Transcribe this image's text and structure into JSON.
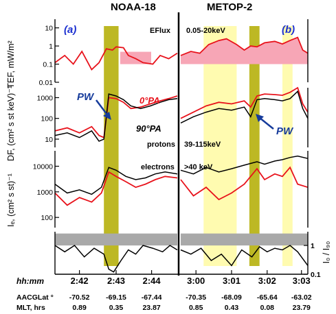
{
  "header": {
    "left_title": "NOAA-18",
    "right_title": "METOP-2"
  },
  "panel_labels": {
    "left": "(a)",
    "right": "(b)"
  },
  "annotations": {
    "eflux": "EFlux",
    "energy_range": "0.05-20keV",
    "pw": "PW",
    "pa0": "0°PA",
    "pa90": "90°PA",
    "protons": "protons",
    "proton_energy": "39-115keV",
    "electrons": "electrons",
    "electron_energy": ">40 keV"
  },
  "axis_labels": {
    "tef": "TEF, mW/m²",
    "df": "DF, (cm² s st keV)⁻¹",
    "ie": "Iₑ, (cm² s st)⁻¹",
    "ratio": "I₀ / I₉₀"
  },
  "row_labels": {
    "time": "hh:mm",
    "lat": "AACGLat °",
    "mlt": "MLT, hrs"
  },
  "colors": {
    "red": "#e8121b",
    "black": "#000000",
    "pw_band": "#bdb824",
    "pale_band": "#fffbb0",
    "pink_fill": "#f7a6b6",
    "gray_band": "#a9a9a9",
    "panel_blue": "#1b2fd0"
  },
  "chart_data": {
    "type": "line",
    "layout": "two-column stacked time series (NOAA-18 left, METOP-2 right)",
    "panels": [
      {
        "name": "TEF",
        "scale": "log",
        "ylim": [
          0.01,
          30
        ],
        "y_ticks": [
          "10",
          "1",
          "0.1",
          "0.01"
        ],
        "y_tick_values": [
          10,
          1,
          0.1,
          0.01
        ],
        "left": {
          "series": [
            {
              "name": "EFlux",
              "color": "red",
              "x": [
                0,
                0.08,
                0.15,
                0.22,
                0.3,
                0.36,
                0.42,
                0.47,
                0.5,
                0.56,
                0.6,
                0.66,
                0.72,
                0.8,
                0.86,
                0.93,
                1.0
              ],
              "values": [
                0.12,
                0.3,
                0.1,
                0.5,
                0.05,
                0.12,
                0.7,
                0.6,
                0.9,
                0.8,
                0.3,
                0.2,
                0.12,
                0.1,
                0.3,
                0.2,
                0.4
              ]
            }
          ]
        },
        "right": {
          "series": [
            {
              "name": "EFlux",
              "color": "red",
              "x": [
                0,
                0.08,
                0.15,
                0.22,
                0.3,
                0.36,
                0.44,
                0.5,
                0.55,
                0.6,
                0.66,
                0.74,
                0.8,
                0.86,
                0.92,
                0.96,
                1.0
              ],
              "values": [
                0.3,
                0.5,
                0.4,
                1.2,
                2.0,
                2.5,
                1.2,
                0.6,
                1.0,
                0.9,
                1.5,
                1.8,
                1.3,
                2.0,
                3.0,
                0.6,
                0.4
              ]
            }
          ]
        }
      },
      {
        "name": "DF",
        "scale": "log",
        "ylim": [
          4,
          3000
        ],
        "y_ticks": [
          "1000",
          "100",
          "10"
        ],
        "y_tick_values": [
          1000,
          100,
          10
        ],
        "left": {
          "series": [
            {
              "name": "0°PA",
              "color": "red",
              "x": [
                0,
                0.1,
                0.2,
                0.3,
                0.36,
                0.4,
                0.44,
                0.5,
                0.56,
                0.62,
                0.7,
                0.78,
                0.86,
                0.93,
                1.0
              ],
              "values": [
                25,
                35,
                20,
                40,
                15,
                12,
                1000,
                900,
                600,
                300,
                350,
                500,
                700,
                900,
                1200
              ]
            },
            {
              "name": "90°PA",
              "color": "black",
              "x": [
                0,
                0.1,
                0.2,
                0.3,
                0.36,
                0.4,
                0.44,
                0.5,
                0.56,
                0.62,
                0.7,
                0.78,
                0.86,
                0.93,
                1.0
              ],
              "values": [
                15,
                20,
                12,
                25,
                8,
                10,
                1500,
                1200,
                800,
                400,
                300,
                400,
                600,
                800,
                900
              ]
            }
          ]
        },
        "right": {
          "series": [
            {
              "name": "0°PA",
              "color": "red",
              "x": [
                0,
                0.1,
                0.2,
                0.3,
                0.4,
                0.5,
                0.55,
                0.6,
                0.66,
                0.74,
                0.8,
                0.86,
                0.92,
                0.96,
                1.0
              ],
              "values": [
                100,
                200,
                400,
                600,
                500,
                700,
                350,
                1200,
                1500,
                1400,
                1300,
                1800,
                3000,
                500,
                200
              ]
            },
            {
              "name": "90°PA",
              "color": "black",
              "x": [
                0,
                0.1,
                0.2,
                0.3,
                0.4,
                0.5,
                0.55,
                0.6,
                0.66,
                0.74,
                0.8,
                0.86,
                0.92,
                0.96,
                1.0
              ],
              "values": [
                60,
                120,
                200,
                300,
                250,
                350,
                120,
                800,
                900,
                800,
                700,
                900,
                2000,
                300,
                100
              ]
            }
          ]
        }
      },
      {
        "name": "Ie",
        "scale": "log",
        "ylim": [
          40,
          40000
        ],
        "y_ticks": [
          "10000",
          "1000",
          "100"
        ],
        "y_tick_values": [
          10000,
          1000,
          100
        ],
        "left": {
          "series": [
            {
              "name": "0°PA",
              "color": "red",
              "x": [
                0,
                0.1,
                0.2,
                0.3,
                0.38,
                0.44,
                0.5,
                0.58,
                0.66,
                0.74,
                0.82,
                0.9,
                1.0
              ],
              "values": [
                900,
                300,
                600,
                400,
                900,
                6000,
                4000,
                2500,
                1500,
                2000,
                3000,
                4000,
                3500
              ]
            },
            {
              "name": "90°PA",
              "color": "black",
              "x": [
                0,
                0.1,
                0.2,
                0.3,
                0.38,
                0.44,
                0.5,
                0.58,
                0.66,
                0.74,
                0.82,
                0.9,
                1.0
              ],
              "values": [
                2000,
                900,
                1200,
                800,
                1500,
                9000,
                7000,
                4000,
                3000,
                3500,
                5000,
                6000,
                5000
              ]
            }
          ]
        },
        "right": {
          "series": [
            {
              "name": "0°PA",
              "color": "red",
              "x": [
                0,
                0.1,
                0.2,
                0.3,
                0.4,
                0.5,
                0.6,
                0.66,
                0.74,
                0.8,
                0.86,
                0.92,
                1.0
              ],
              "values": [
                3000,
                700,
                1500,
                500,
                900,
                2000,
                8000,
                3000,
                5000,
                4000,
                9000,
                2000,
                1500
              ]
            },
            {
              "name": "90°PA",
              "color": "black",
              "x": [
                0,
                0.1,
                0.2,
                0.3,
                0.4,
                0.5,
                0.6,
                0.66,
                0.74,
                0.8,
                0.86,
                0.92,
                1.0
              ],
              "values": [
                7000,
                5000,
                9000,
                6000,
                8000,
                11000,
                15000,
                12000,
                16000,
                18000,
                22000,
                25000,
                20000
              ]
            }
          ]
        }
      },
      {
        "name": "I0/I90",
        "scale": "log",
        "ylim": [
          0.1,
          3
        ],
        "y_ticks": [
          "1",
          "0.1"
        ],
        "y_tick_values": [
          1,
          0.1
        ],
        "left": {
          "series": [
            {
              "name": "ratio",
              "color": "black",
              "x": [
                0,
                0.08,
                0.16,
                0.24,
                0.32,
                0.4,
                0.44,
                0.48,
                0.54,
                0.6,
                0.66,
                0.72,
                0.8,
                0.88,
                0.94,
                1.0
              ],
              "values": [
                1.0,
                0.6,
                1.0,
                0.4,
                0.8,
                0.5,
                0.15,
                0.12,
                0.3,
                0.7,
                0.5,
                1.0,
                0.8,
                0.6,
                1.0,
                0.7
              ]
            }
          ]
        },
        "right": {
          "series": [
            {
              "name": "ratio",
              "color": "black",
              "x": [
                0,
                0.08,
                0.16,
                0.24,
                0.32,
                0.4,
                0.48,
                0.56,
                0.62,
                0.68,
                0.74,
                0.8,
                0.86,
                0.92,
                1.0
              ],
              "values": [
                0.7,
                0.5,
                0.8,
                0.3,
                0.5,
                0.2,
                0.7,
                0.4,
                0.9,
                0.6,
                0.8,
                0.7,
                1.0,
                0.6,
                0.2
              ]
            }
          ]
        }
      }
    ],
    "shaded_regions": {
      "left": [
        {
          "kind": "pw",
          "x": [
            0.4,
            0.52
          ]
        }
      ],
      "right": [
        {
          "kind": "pale",
          "x": [
            0.18,
            0.44
          ]
        },
        {
          "kind": "pw",
          "x": [
            0.54,
            0.62
          ]
        },
        {
          "kind": "pale",
          "x": [
            0.8,
            0.88
          ]
        }
      ]
    },
    "time_axis": {
      "left": {
        "ticks": [
          "2:42",
          "2:43",
          "2:44"
        ],
        "tick_x": [
          0.2,
          0.5,
          0.79
        ],
        "aacglat": [
          "-70.52",
          "-69.15",
          "-67.44"
        ],
        "mlt": [
          "0.89",
          "0.35",
          "23.87"
        ]
      },
      "right": {
        "ticks": [
          "3:00",
          "3:01",
          "3:02",
          "3:03"
        ],
        "tick_x": [
          0.12,
          0.4,
          0.68,
          0.95
        ],
        "aacglat": [
          "-70.35",
          "-68.09",
          "-65.64",
          "-63.02"
        ],
        "mlt": [
          "0.85",
          "0.43",
          "0.08",
          "23.79"
        ]
      }
    }
  }
}
